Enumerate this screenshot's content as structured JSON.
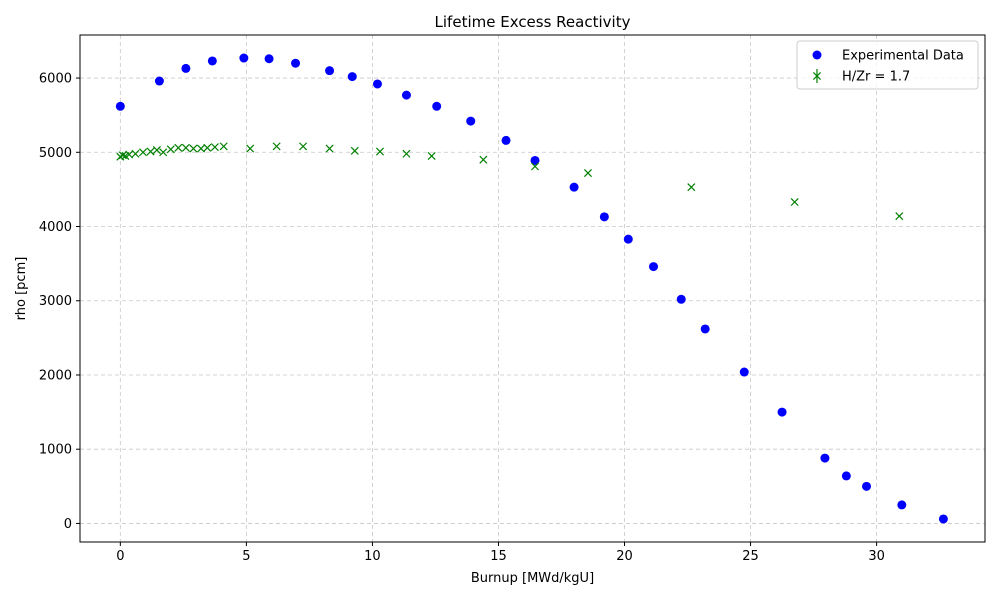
{
  "chart_data": {
    "type": "scatter",
    "title": "Lifetime Excess Reactivity",
    "xlabel": "Burnup [MWd/kgU]",
    "ylabel": "rho [pcm]",
    "xlim": [
      -1.6,
      34.3
    ],
    "ylim": [
      -250,
      6580
    ],
    "xticks": [
      0,
      5,
      10,
      15,
      20,
      25,
      30
    ],
    "yticks": [
      0,
      1000,
      2000,
      3000,
      4000,
      5000,
      6000
    ],
    "grid": true,
    "legend_position": "top-right",
    "series": [
      {
        "name": "Experimental Data",
        "marker": "circle",
        "color": "#0000ff",
        "x": [
          0.0,
          1.55,
          2.6,
          3.65,
          4.9,
          5.9,
          6.95,
          8.3,
          9.2,
          10.2,
          11.35,
          12.55,
          13.9,
          15.3,
          16.45,
          18.0,
          19.2,
          20.15,
          21.15,
          22.25,
          23.2,
          24.75,
          26.25,
          27.95,
          28.8,
          29.6,
          31.0,
          32.65
        ],
        "y": [
          5620,
          5960,
          6130,
          6230,
          6270,
          6260,
          6200,
          6100,
          6020,
          5920,
          5770,
          5620,
          5420,
          5160,
          4890,
          4530,
          4130,
          3830,
          3460,
          3020,
          2620,
          2040,
          1500,
          880,
          640,
          500,
          250,
          60
        ]
      },
      {
        "name": "H/Zr = 1.7",
        "marker": "x",
        "color": "#008000",
        "x": [
          0.0,
          0.1,
          0.2,
          0.35,
          0.6,
          0.9,
          1.2,
          1.45,
          1.7,
          2.0,
          2.3,
          2.6,
          2.9,
          3.2,
          3.45,
          3.75,
          4.1,
          5.15,
          6.2,
          7.25,
          8.3,
          9.3,
          10.3,
          11.35,
          12.35,
          14.4,
          16.45,
          18.55,
          22.65,
          26.75,
          30.9
        ],
        "y": [
          4940,
          4960,
          4950,
          4970,
          4980,
          5000,
          5010,
          5030,
          5000,
          5040,
          5060,
          5060,
          5050,
          5050,
          5060,
          5070,
          5080,
          5050,
          5080,
          5080,
          5050,
          5020,
          5010,
          4980,
          4950,
          4900,
          4810,
          4720,
          4530,
          4330,
          4140
        ]
      }
    ]
  }
}
